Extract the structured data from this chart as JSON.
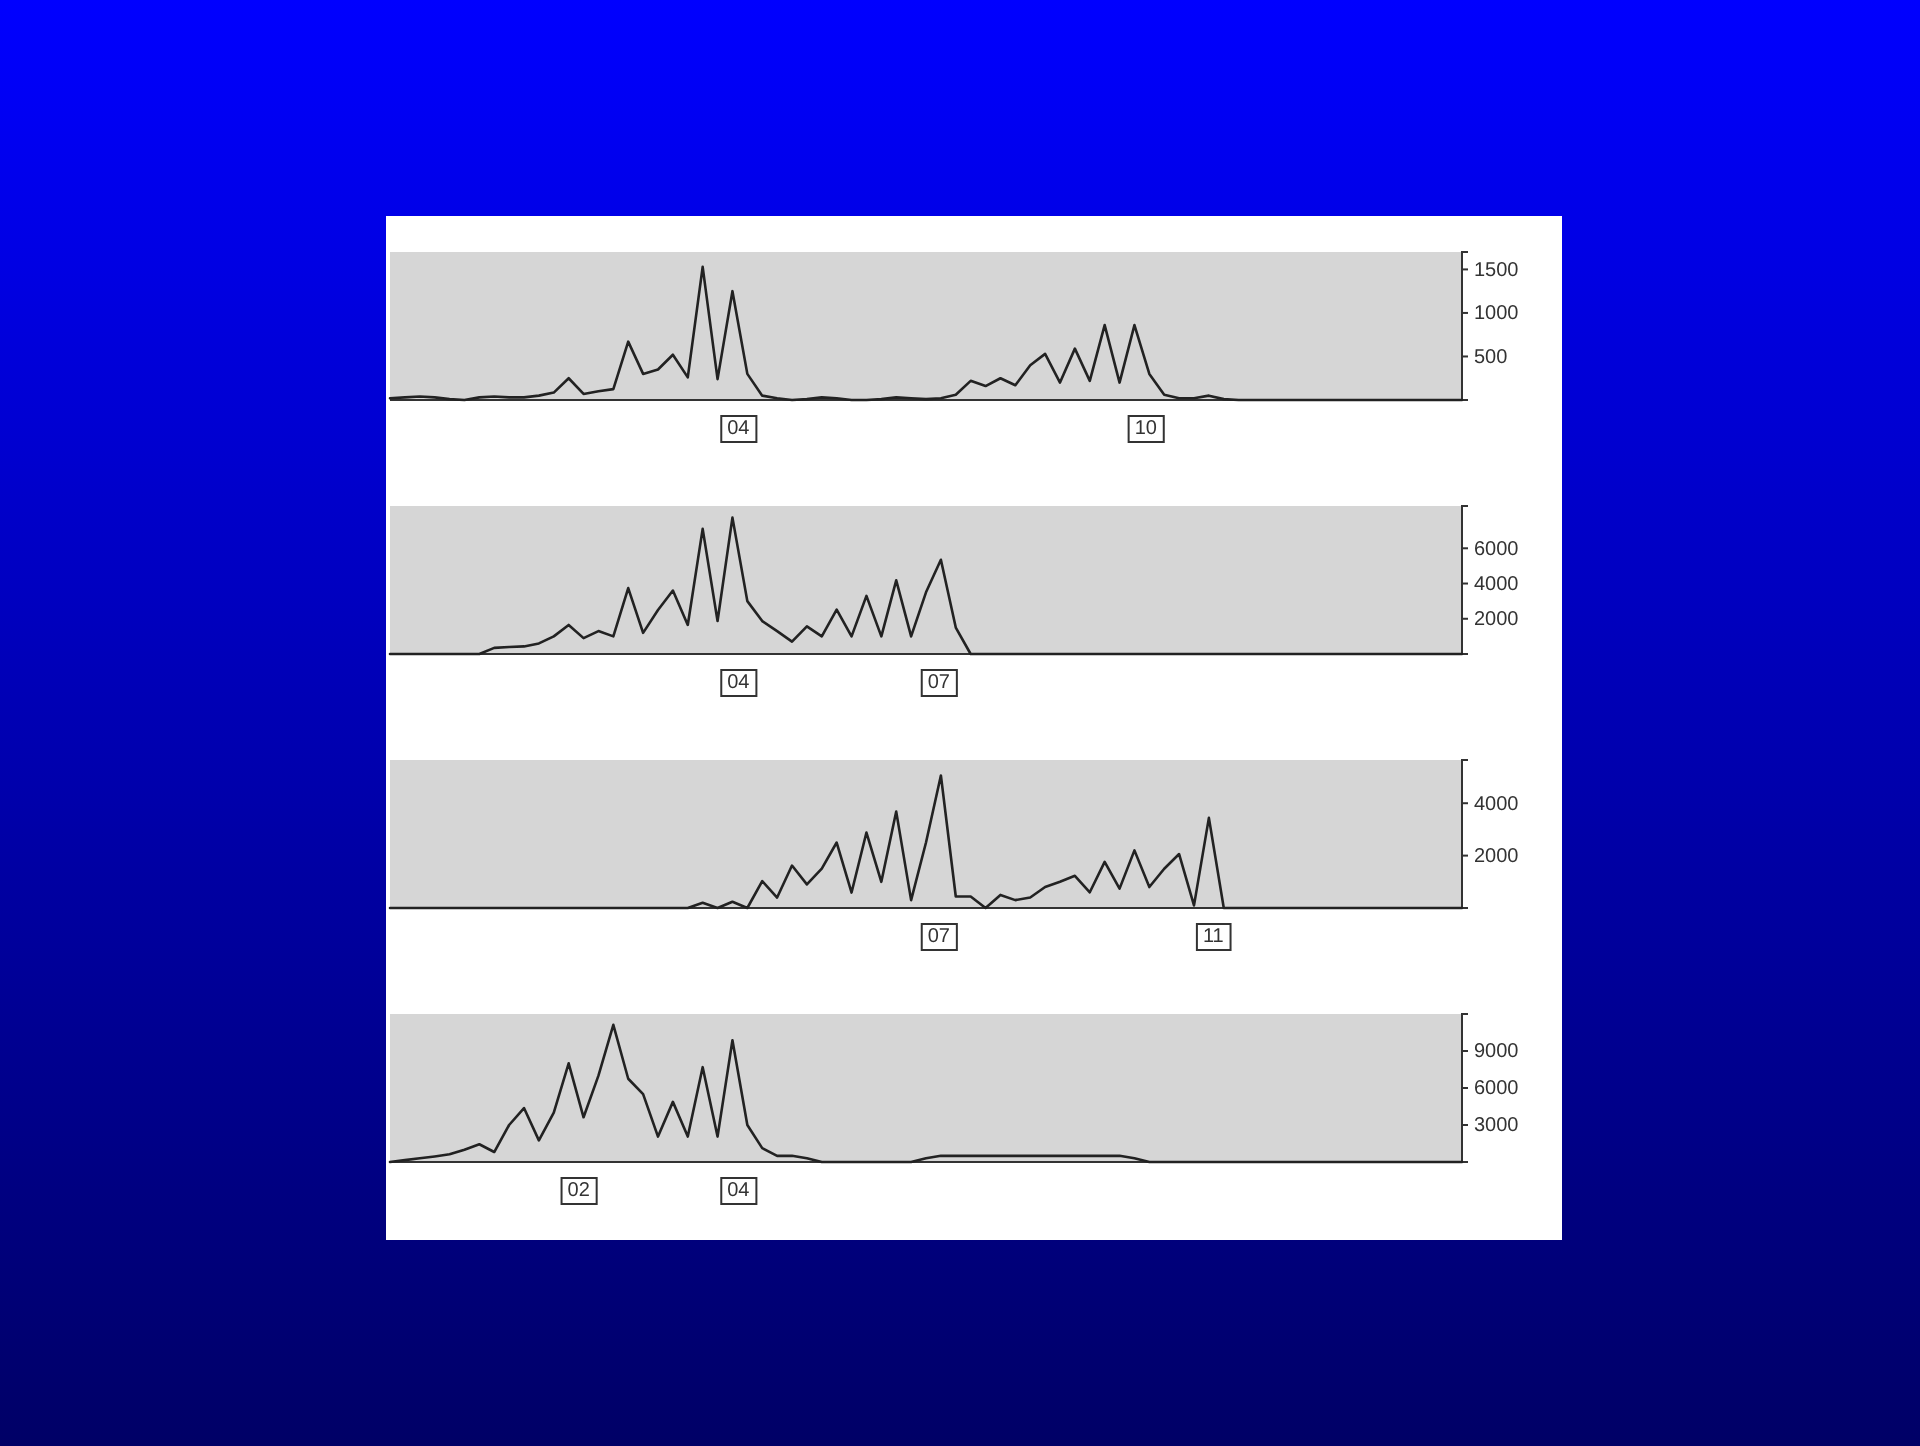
{
  "chart_data": [
    {
      "type": "line",
      "color": "#222222",
      "categories": [
        null,
        null,
        null,
        null,
        null,
        null,
        null,
        null,
        null,
        null,
        null,
        null,
        null,
        null,
        null,
        null,
        null,
        null,
        null,
        null,
        null,
        null,
        null,
        null,
        null,
        null,
        null,
        null,
        null,
        null,
        null,
        null,
        null,
        null,
        null,
        null,
        null,
        null,
        null,
        null,
        null,
        null,
        null,
        null,
        null,
        null,
        null,
        null,
        null,
        null,
        null,
        null,
        null,
        null,
        null,
        null,
        null,
        null,
        null,
        null,
        null,
        null,
        null,
        null,
        null,
        null,
        null,
        null,
        null,
        null,
        null,
        null,
        null
      ],
      "ylim": [
        0,
        1700
      ],
      "yticks": [
        500,
        1000,
        1500
      ],
      "tick_labels": "y",
      "values": [
        20,
        30,
        40,
        30,
        10,
        0,
        30,
        40,
        30,
        30,
        50,
        85,
        250,
        70,
        100,
        125,
        670,
        300,
        350,
        520,
        260,
        1530,
        240,
        1250,
        300,
        50,
        20,
        0,
        10,
        30,
        20,
        0,
        0,
        10,
        30,
        20,
        10,
        20,
        60,
        220,
        160,
        250,
        170,
        400,
        530,
        200,
        590,
        220,
        860,
        200,
        860,
        300,
        60,
        20,
        20,
        50,
        10,
        0,
        0,
        0,
        0,
        0,
        0,
        0,
        0,
        0,
        0,
        0,
        0,
        0,
        0,
        0,
        0
      ],
      "annotations": [
        "04",
        "10"
      ]
    },
    {
      "type": "line",
      "color": "#222222",
      "categories": [
        null,
        null,
        null,
        null,
        null,
        null,
        null,
        null,
        null,
        null,
        null,
        null,
        null,
        null,
        null,
        null,
        null,
        null,
        null,
        null,
        null,
        null,
        null,
        null,
        null,
        null,
        null,
        null,
        null,
        null,
        null,
        null,
        null,
        null,
        null,
        null,
        null,
        null,
        null,
        null,
        null,
        null,
        null,
        null,
        null,
        null,
        null,
        null,
        null,
        null,
        null,
        null,
        null,
        null,
        null,
        null,
        null,
        null,
        null,
        null,
        null,
        null,
        null,
        null,
        null,
        null,
        null,
        null,
        null,
        null,
        null,
        null,
        null
      ],
      "ylim": [
        0,
        8400
      ],
      "yticks": [
        2000,
        4000,
        6000
      ],
      "tick_labels": "y",
      "values": [
        0,
        0,
        0,
        0,
        0,
        0,
        0,
        350,
        400,
        430,
        600,
        1000,
        1650,
        900,
        1300,
        1000,
        3740,
        1200,
        2500,
        3600,
        1650,
        7100,
        1870,
        7740,
        3000,
        1870,
        1300,
        700,
        1570,
        1000,
        2520,
        1000,
        3300,
        1000,
        4180,
        1000,
        3500,
        5350,
        1500,
        0,
        0,
        0,
        0,
        0,
        0,
        0,
        0,
        0,
        0,
        0,
        0,
        0,
        0,
        0,
        0,
        0,
        0,
        0,
        0,
        0,
        0,
        0,
        0,
        0,
        0,
        0,
        0,
        0,
        0,
        0,
        0,
        0,
        0
      ],
      "annotations": [
        "04",
        "07"
      ]
    },
    {
      "type": "line",
      "color": "#222222",
      "categories": [
        null,
        null,
        null,
        null,
        null,
        null,
        null,
        null,
        null,
        null,
        null,
        null,
        null,
        null,
        null,
        null,
        null,
        null,
        null,
        null,
        null,
        null,
        null,
        null,
        null,
        null,
        null,
        null,
        null,
        null,
        null,
        null,
        null,
        null,
        null,
        null,
        null,
        null,
        null,
        null,
        null,
        null,
        null,
        null,
        null,
        null,
        null,
        null,
        null,
        null,
        null,
        null,
        null,
        null,
        null,
        null,
        null,
        null,
        null,
        null,
        null,
        null,
        null,
        null,
        null,
        null,
        null,
        null,
        null,
        null,
        null,
        null,
        null
      ],
      "ylim": [
        0,
        5650
      ],
      "yticks": [
        2000,
        4000
      ],
      "tick_labels": "y",
      "values": [
        0,
        0,
        0,
        0,
        0,
        0,
        0,
        0,
        0,
        0,
        0,
        0,
        0,
        0,
        0,
        0,
        0,
        0,
        0,
        0,
        0,
        200,
        0,
        240,
        0,
        1030,
        400,
        1620,
        900,
        1500,
        2500,
        590,
        2880,
        1000,
        3680,
        300,
        2500,
        5060,
        440,
        440,
        0,
        500,
        300,
        400,
        800,
        1000,
        1230,
        600,
        1760,
        740,
        2200,
        800,
        1500,
        2060,
        100,
        3440,
        0,
        0,
        0,
        0,
        0,
        0,
        0,
        0,
        0,
        0,
        0,
        0,
        0,
        0,
        0,
        0,
        0
      ],
      "annotations": [
        "07",
        "11"
      ]
    },
    {
      "type": "line",
      "color": "#222222",
      "categories": [
        null,
        null,
        null,
        null,
        null,
        null,
        null,
        null,
        null,
        null,
        null,
        null,
        null,
        null,
        null,
        null,
        null,
        null,
        null,
        null,
        null,
        null,
        null,
        null,
        null,
        null,
        null,
        null,
        null,
        null,
        null,
        null,
        null,
        null,
        null,
        null,
        null,
        null,
        null,
        null,
        null,
        null,
        null,
        null,
        null,
        null,
        null,
        null,
        null,
        null,
        null,
        null,
        null,
        null,
        null,
        null,
        null,
        null,
        null,
        null,
        null,
        null,
        null,
        null,
        null,
        null,
        null,
        null,
        null,
        null,
        null,
        null,
        null
      ],
      "ylim": [
        0,
        12000
      ],
      "yticks": [
        3000,
        6000,
        9000
      ],
      "tick_labels": "y",
      "values": [
        0,
        150,
        300,
        450,
        625,
        1000,
        1440,
        810,
        3000,
        4375,
        1750,
        4000,
        8000,
        3625,
        7000,
        11125,
        6750,
        5500,
        2060,
        4875,
        2060,
        7690,
        2060,
        9875,
        3000,
        1125,
        500,
        500,
        300,
        0,
        0,
        0,
        0,
        0,
        0,
        0,
        300,
        500,
        500,
        500,
        500,
        500,
        500,
        500,
        500,
        500,
        500,
        500,
        500,
        500,
        300,
        0,
        0,
        0,
        0,
        0,
        0,
        0,
        0,
        0,
        0,
        0,
        0,
        0,
        0,
        0,
        0,
        0,
        0,
        0,
        0,
        0,
        0
      ],
      "annotations": [
        "02",
        "04"
      ]
    }
  ]
}
